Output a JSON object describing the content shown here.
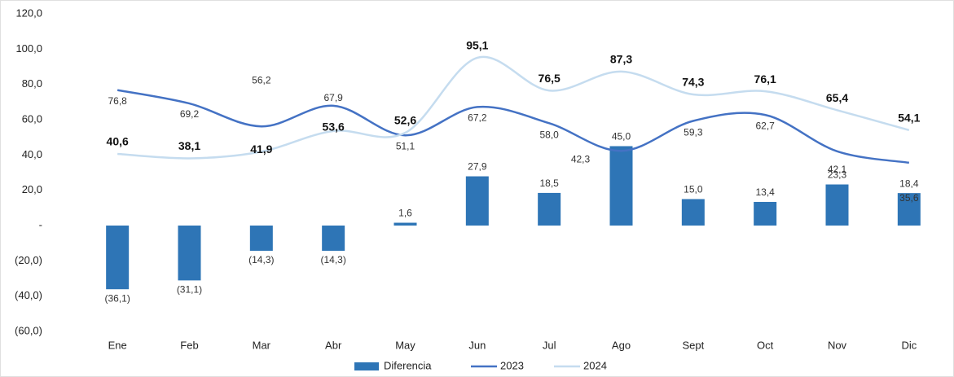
{
  "chart_data": {
    "type": "bar_line",
    "categories": [
      "Ene",
      "Feb",
      "Mar",
      "Abr",
      "May",
      "Jun",
      "Jul",
      "Ago",
      "Sept",
      "Oct",
      "Nov",
      "Dic"
    ],
    "series": [
      {
        "name": "Diferencia",
        "type": "bar",
        "color": "#2e75b6",
        "values": [
          -36.1,
          -31.1,
          -14.3,
          -14.3,
          1.6,
          27.9,
          18.5,
          45.0,
          15.0,
          13.4,
          23.3,
          18.4
        ],
        "value_labels": [
          "(36,1)",
          "(31,1)",
          "(14,3)",
          "(14,3)",
          "1,6",
          "27,9",
          "18,5",
          "45,0",
          "15,0",
          "13,4",
          "23,3",
          "18,4"
        ]
      },
      {
        "name": "2023",
        "type": "line",
        "color": "#4472c4",
        "values": [
          76.8,
          69.2,
          56.2,
          67.9,
          51.1,
          67.2,
          58.0,
          42.3,
          59.3,
          62.7,
          42.1,
          35.6
        ],
        "value_labels": [
          "76,8",
          "69,2",
          "56,2",
          "67,9",
          "51,1",
          "67,2",
          "58,0",
          "42,3",
          "59,3",
          "62,7",
          "42,1",
          "35,6"
        ]
      },
      {
        "name": "2024",
        "type": "line",
        "color": "#c5dcef",
        "values": [
          40.6,
          38.1,
          41.9,
          53.6,
          52.6,
          95.1,
          76.5,
          87.3,
          74.3,
          76.1,
          65.4,
          54.1
        ],
        "value_labels": [
          "40,6",
          "38,1",
          "41,9",
          "53,6",
          "52,6",
          "95,1",
          "76,5",
          "87,3",
          "74,3",
          "76,1",
          "65,4",
          "54,1"
        ]
      }
    ],
    "ylim": [
      -60,
      120
    ],
    "yticks": [
      {
        "value": -60,
        "label": "(60,0)"
      },
      {
        "value": -40,
        "label": "(40,0)"
      },
      {
        "value": -20,
        "label": "(20,0)"
      },
      {
        "value": 0,
        "label": "-"
      },
      {
        "value": 20,
        "label": "20,0"
      },
      {
        "value": 40,
        "label": "40,0"
      },
      {
        "value": 60,
        "label": "60,0"
      },
      {
        "value": 80,
        "label": "80,0"
      },
      {
        "value": 100,
        "label": "100,0"
      },
      {
        "value": 120,
        "label": "120,0"
      }
    ],
    "grid": false,
    "legend": "bottom"
  }
}
